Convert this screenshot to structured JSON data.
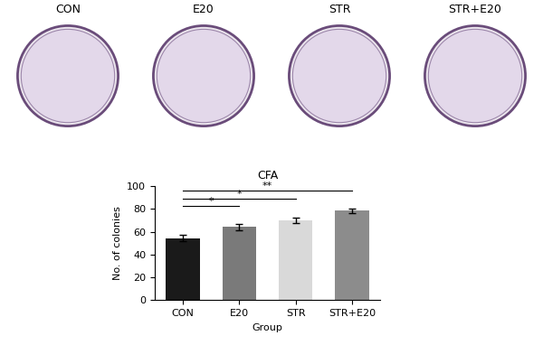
{
  "photo_panels": [
    "CON",
    "E20",
    "STR",
    "STR+E20"
  ],
  "chart_data": {
    "type": "bar",
    "title": "CFA",
    "x_label": "Group",
    "y_label": "No. of colonies",
    "categories": [
      "CON",
      "E20",
      "STR",
      "STR+E20"
    ],
    "values": [
      54.5,
      64.5,
      70,
      78.5
    ],
    "errors": [
      3,
      2.8,
      2.5,
      1.8
    ],
    "colors": [
      "#1a1a1a",
      "#7a7a7a",
      "#d9d9d9",
      "#8c8c8c"
    ],
    "ylim": [
      0,
      100
    ],
    "yticks": [
      0,
      20,
      40,
      60,
      80,
      100
    ],
    "annotations": [
      {
        "from": "CON",
        "to": "E20",
        "text": "*"
      },
      {
        "from": "CON",
        "to": "STR",
        "text": "*"
      },
      {
        "from": "CON",
        "to": "STR+E20",
        "text": "**"
      }
    ]
  }
}
